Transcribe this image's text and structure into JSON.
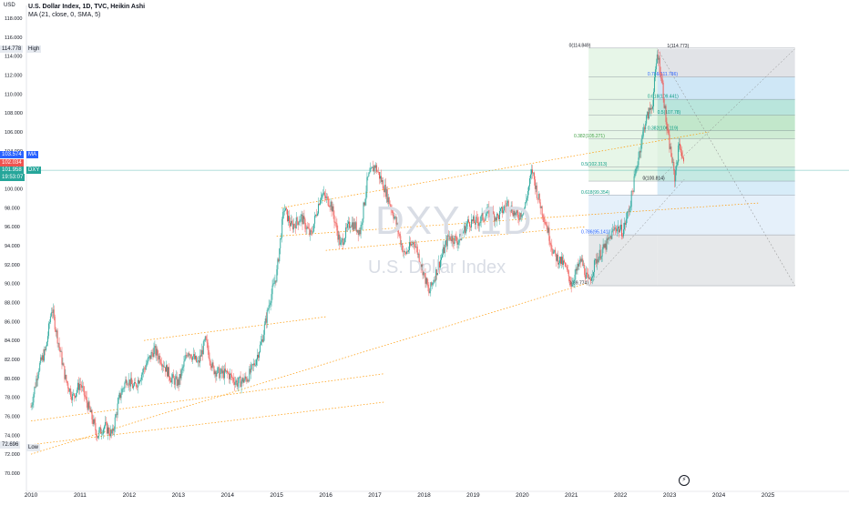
{
  "header": {
    "title": "U.S. Dollar Index, 1D, TVC, Heikin Ashi",
    "indicator": "MA (21, close, 0, SMA, 5)"
  },
  "axis_title": "USD",
  "watermark": {
    "symbol": "DXY, 1D",
    "name": "U.S. Dollar Index"
  },
  "tags": {
    "high_value": "114.778",
    "high_label": "High",
    "ma_value": "103.574",
    "ma_label": "MA",
    "red_value": "102.034",
    "price_value": "101.958",
    "price_label": "DXY",
    "countdown": "19:53:07",
    "low_value": "72.696",
    "low_label": "Low"
  },
  "colors": {
    "up": "#26a69a",
    "down": "#ef5350",
    "ma": "#2962ff",
    "channel": "#ff9800",
    "price_line": "#26a69a"
  },
  "icons": {
    "time_icon": "lightning-icon"
  },
  "chart_data": {
    "type": "candlestick",
    "title": "U.S. Dollar Index, 1D, TVC, Heikin Ashi",
    "ylim": [
      70,
      118
    ],
    "y_ticks": [
      "70.000",
      "72.000",
      "74.000",
      "76.000",
      "78.000",
      "80.000",
      "82.000",
      "84.000",
      "86.000",
      "88.000",
      "90.000",
      "92.000",
      "94.000",
      "96.000",
      "98.000",
      "100.000",
      "102.000",
      "104.000",
      "106.000",
      "108.000",
      "110.000",
      "112.000",
      "114.000",
      "116.000",
      "118.000"
    ],
    "x_ticks": [
      "2010",
      "2011",
      "2012",
      "2013",
      "2014",
      "2015",
      "2016",
      "2017",
      "2018",
      "2019",
      "2020",
      "2021",
      "2022",
      "2023",
      "2024",
      "2025"
    ],
    "series": [
      {
        "name": "DXY",
        "points": [
          [
            2010.0,
            77.0
          ],
          [
            2010.15,
            81.0
          ],
          [
            2010.3,
            83.0
          ],
          [
            2010.42,
            87.5
          ],
          [
            2010.55,
            84.0
          ],
          [
            2010.7,
            80.0
          ],
          [
            2010.85,
            78.0
          ],
          [
            2011.0,
            79.5
          ],
          [
            2011.2,
            76.5
          ],
          [
            2011.35,
            74.0
          ],
          [
            2011.5,
            75.0
          ],
          [
            2011.65,
            74.0
          ],
          [
            2011.8,
            78.0
          ],
          [
            2011.95,
            80.0
          ],
          [
            2012.1,
            79.0
          ],
          [
            2012.3,
            81.0
          ],
          [
            2012.5,
            83.0
          ],
          [
            2012.65,
            82.0
          ],
          [
            2012.85,
            80.0
          ],
          [
            2013.0,
            79.5
          ],
          [
            2013.2,
            83.0
          ],
          [
            2013.4,
            81.5
          ],
          [
            2013.55,
            84.0
          ],
          [
            2013.7,
            81.0
          ],
          [
            2013.85,
            80.5
          ],
          [
            2014.0,
            80.5
          ],
          [
            2014.2,
            79.5
          ],
          [
            2014.4,
            80.0
          ],
          [
            2014.55,
            81.5
          ],
          [
            2014.7,
            84.0
          ],
          [
            2014.85,
            88.0
          ],
          [
            2015.0,
            91.0
          ],
          [
            2015.15,
            98.0
          ],
          [
            2015.3,
            96.0
          ],
          [
            2015.5,
            97.0
          ],
          [
            2015.7,
            95.0
          ],
          [
            2015.9,
            99.5
          ],
          [
            2016.1,
            98.5
          ],
          [
            2016.3,
            94.0
          ],
          [
            2016.5,
            96.5
          ],
          [
            2016.7,
            95.5
          ],
          [
            2016.85,
            101.0
          ],
          [
            2017.0,
            102.5
          ],
          [
            2017.2,
            100.0
          ],
          [
            2017.4,
            97.0
          ],
          [
            2017.6,
            93.0
          ],
          [
            2017.8,
            94.5
          ],
          [
            2018.0,
            91.0
          ],
          [
            2018.1,
            89.0
          ],
          [
            2018.3,
            92.0
          ],
          [
            2018.5,
            95.0
          ],
          [
            2018.7,
            94.5
          ],
          [
            2018.9,
            96.5
          ],
          [
            2019.1,
            96.5
          ],
          [
            2019.3,
            97.5
          ],
          [
            2019.5,
            97.0
          ],
          [
            2019.7,
            98.5
          ],
          [
            2019.9,
            97.0
          ],
          [
            2020.05,
            98.0
          ],
          [
            2020.2,
            102.0
          ],
          [
            2020.3,
            99.5
          ],
          [
            2020.5,
            96.0
          ],
          [
            2020.65,
            93.0
          ],
          [
            2020.85,
            92.0
          ],
          [
            2021.0,
            90.0
          ],
          [
            2021.2,
            92.5
          ],
          [
            2021.35,
            90.0
          ],
          [
            2021.5,
            92.5
          ],
          [
            2021.7,
            94.0
          ],
          [
            2021.9,
            96.0
          ],
          [
            2022.05,
            95.5
          ],
          [
            2022.2,
            98.5
          ],
          [
            2022.35,
            103.0
          ],
          [
            2022.5,
            107.0
          ],
          [
            2022.65,
            109.0
          ],
          [
            2022.75,
            114.5
          ],
          [
            2022.85,
            111.0
          ],
          [
            2022.95,
            106.0
          ],
          [
            2023.05,
            103.0
          ],
          [
            2023.1,
            101.0
          ],
          [
            2023.2,
            105.0
          ],
          [
            2023.3,
            102.0
          ]
        ]
      },
      {
        "name": "MA (21, close, 0, SMA, 5)"
      }
    ],
    "fib_levels": [
      {
        "label": "1(114.773)"
      },
      {
        "label": "0.786(111.786)"
      },
      {
        "label": "0.618(109.441)"
      },
      {
        "label": "0.5(107.78)"
      },
      {
        "label": "0.382(106.119)"
      },
      {
        "label": "0.382(105.271)"
      },
      {
        "label": "0.5(102.313)"
      },
      {
        "label": "0(100.814)"
      },
      {
        "label": "0.618(99.354)"
      },
      {
        "label": "0.786(95.141)"
      },
      {
        "label": "0(114.849)"
      },
      {
        "label": "0(89.774)"
      }
    ],
    "grid": false,
    "legend": "top-left"
  }
}
